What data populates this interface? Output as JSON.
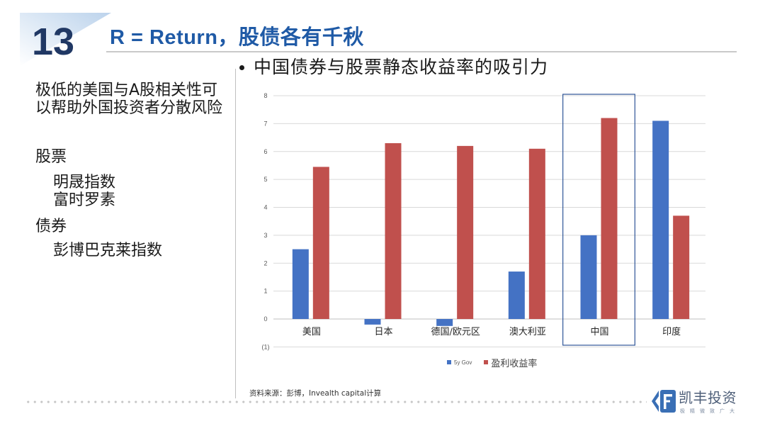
{
  "slide": {
    "number": "13",
    "title": "R = Return，股债各有千秋",
    "bullet_text": "中国债券与股票静态收益率的吸引力",
    "intro_lines": [
      "极低的美国与A股相关性可",
      "以帮助外国投资者分散风险"
    ],
    "equities_heading": "股票",
    "equities_items": [
      "明晟指数",
      "富时罗素"
    ],
    "bonds_heading": "债券",
    "bonds_items": [
      "彭博巴克莱指数"
    ],
    "source_note": "资料来源：彭博，Invealth capital计算"
  },
  "logo": {
    "name": "凯丰投资",
    "tagline": "极精微致广大",
    "icon": "kf-logo-icon"
  },
  "colors": {
    "slide_number": "#203864",
    "title": "#1f5aa6",
    "text": "#1a1a1a",
    "corner_fill": "#bcd3ec",
    "logo_blue": "#3a6fb5",
    "highlight_box": "#2f5597",
    "negative_tick": "#c00000",
    "grid": "#d9d9d9",
    "zero_line": "#bfbfbf"
  },
  "chart_data": {
    "type": "bar",
    "categories": [
      "美国",
      "日本",
      "德国/欧元区",
      "澳大利亚",
      "中国",
      "印度"
    ],
    "series": [
      {
        "name": "5y Gov",
        "color": "#4472c4",
        "values": [
          2.5,
          -0.2,
          -0.25,
          1.7,
          3.0,
          7.1
        ]
      },
      {
        "name": "盈利收益率",
        "color": "#c0504d",
        "values": [
          5.45,
          6.3,
          6.2,
          6.1,
          7.2,
          3.7
        ]
      }
    ],
    "y_ticks": [
      8,
      7,
      6,
      5,
      4,
      3,
      2,
      1,
      0,
      -1
    ],
    "y_tick_labels": [
      "8",
      "7",
      "6",
      "5",
      "4",
      "3",
      "2",
      "1",
      "0",
      "(1)"
    ],
    "ylim": [
      -1,
      8
    ],
    "grid": true,
    "legend": "bottom",
    "highlighted_category_index": 4
  }
}
